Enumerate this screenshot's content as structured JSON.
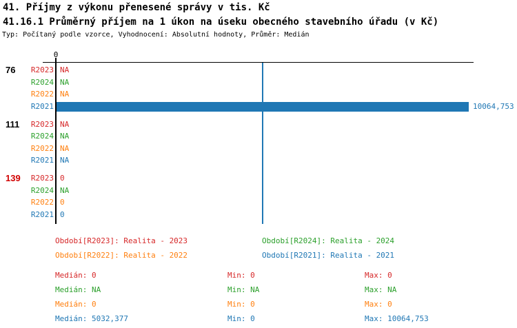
{
  "header": {
    "title": "41. Příjmy z výkonu přenesené správy v tis. Kč",
    "subtitle": "41.16.1 Průměrný příjem na 1 úkon na úseku obecného stavebního úřadu (v Kč)",
    "meta": "Typ: Počítaný podle vzorce, Vyhodnocení: Absolutní hodnoty, Průměr: Medián"
  },
  "colors": {
    "bar": "#1f77b4",
    "axis": "#000000",
    "median_line": "#1f77b4",
    "alert_group": "#d10000"
  },
  "chart_data": {
    "type": "bar",
    "orientation": "horizontal",
    "title": "41.16.1 Průměrný příjem na 1 úkon na úseku obecného stavebního úřadu (v Kč)",
    "x_axis": {
      "tick_labels": [
        "0"
      ],
      "min": 0,
      "max_rendered": 10064.753
    },
    "median_reference_line": 5032.377,
    "series_colors": {
      "R2023": "#d62728",
      "R2024": "#2ca02c",
      "R2022": "#ff7f0e",
      "R2021": "#1f77b4"
    },
    "groups": [
      {
        "label": "76",
        "label_color": "#000000",
        "rows": [
          {
            "series": "R2023",
            "display": "NA",
            "value": null
          },
          {
            "series": "R2024",
            "display": "NA",
            "value": null
          },
          {
            "series": "R2022",
            "display": "NA",
            "value": null
          },
          {
            "series": "R2021",
            "display": "10064,753",
            "value": 10064.753
          }
        ]
      },
      {
        "label": "111",
        "label_color": "#000000",
        "rows": [
          {
            "series": "R2023",
            "display": "NA",
            "value": null
          },
          {
            "series": "R2024",
            "display": "NA",
            "value": null
          },
          {
            "series": "R2022",
            "display": "NA",
            "value": null
          },
          {
            "series": "R2021",
            "display": "NA",
            "value": null
          }
        ]
      },
      {
        "label": "139",
        "label_color": "#d10000",
        "rows": [
          {
            "series": "R2023",
            "display": "0",
            "value": 0
          },
          {
            "series": "R2024",
            "display": "NA",
            "value": null
          },
          {
            "series": "R2022",
            "display": "0",
            "value": 0
          },
          {
            "series": "R2021",
            "display": "0",
            "value": 0
          }
        ]
      }
    ]
  },
  "legend": {
    "items": [
      {
        "text": "Období[R2023]: Realita - 2023",
        "color": "#d62728"
      },
      {
        "text": "Období[R2024]: Realita - 2024",
        "color": "#2ca02c"
      },
      {
        "text": "Období[R2022]: Realita - 2022",
        "color": "#ff7f0e"
      },
      {
        "text": "Období[R2021]: Realita - 2021",
        "color": "#1f77b4"
      }
    ]
  },
  "stats": {
    "rows": [
      {
        "color": "#d62728",
        "cells": [
          "Medián: 0",
          "Min: 0",
          "Max: 0"
        ]
      },
      {
        "color": "#2ca02c",
        "cells": [
          "Medián: NA",
          "Min: NA",
          "Max: NA"
        ]
      },
      {
        "color": "#ff7f0e",
        "cells": [
          "Medián: 0",
          "Min: 0",
          "Max: 0"
        ]
      },
      {
        "color": "#1f77b4",
        "cells": [
          "Medián: 5032,377",
          "Min: 0",
          "Max: 10064,753"
        ]
      }
    ]
  }
}
